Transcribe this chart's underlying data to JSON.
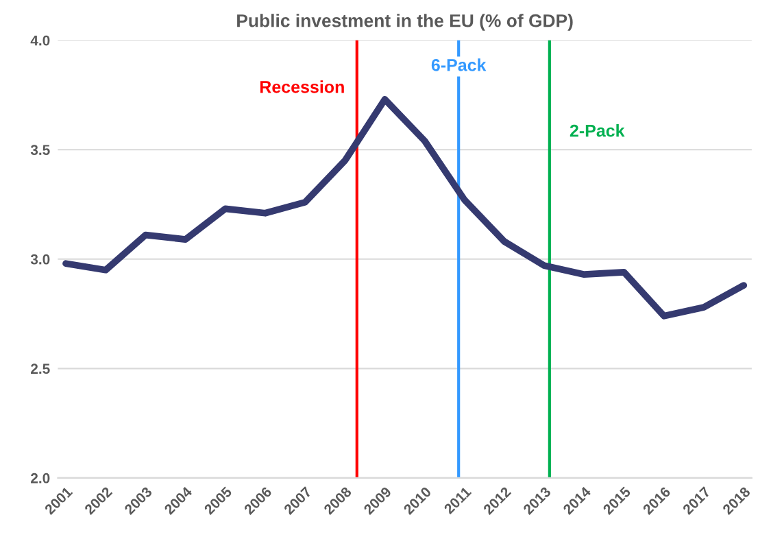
{
  "chart_data": {
    "type": "line",
    "title": "Public investment in the EU (% of GDP)",
    "x": [
      2001,
      2002,
      2003,
      2004,
      2005,
      2006,
      2007,
      2008,
      2009,
      2010,
      2011,
      2012,
      2013,
      2014,
      2015,
      2016,
      2017,
      2018
    ],
    "series": [
      {
        "color": "#353a70",
        "values": [
          2.98,
          2.95,
          3.11,
          3.09,
          3.23,
          3.21,
          3.26,
          3.45,
          3.73,
          3.54,
          3.27,
          3.08,
          2.97,
          2.93,
          2.94,
          2.74,
          2.78,
          2.88
        ]
      }
    ],
    "xlim": [
      2000.8,
      2018.2
    ],
    "xticks": [
      2001,
      2002,
      2003,
      2004,
      2005,
      2006,
      2007,
      2008,
      2009,
      2010,
      2011,
      2012,
      2013,
      2014,
      2015,
      2016,
      2017,
      2018
    ],
    "ylim": [
      2.0,
      4.0
    ],
    "yticks": [
      {
        "value": 2.0,
        "label": "2.0"
      },
      {
        "value": 2.5,
        "label": "2.5"
      },
      {
        "value": 3.0,
        "label": "3.0"
      },
      {
        "value": 3.5,
        "label": "3.5"
      },
      {
        "value": 4.0,
        "label": "4.0"
      }
    ],
    "grid": "y",
    "marker": "none",
    "line_style": "solid",
    "ref_lines": [
      {
        "axis": "x",
        "value": 2008.3,
        "label": "Recession",
        "color": "#ff0000"
      },
      {
        "axis": "x",
        "value": 2010.85,
        "label": "6-Pack",
        "color": "#3399ff"
      },
      {
        "axis": "x",
        "value": 2013.13,
        "label": "2-Pack",
        "color": "#00b050"
      }
    ]
  }
}
